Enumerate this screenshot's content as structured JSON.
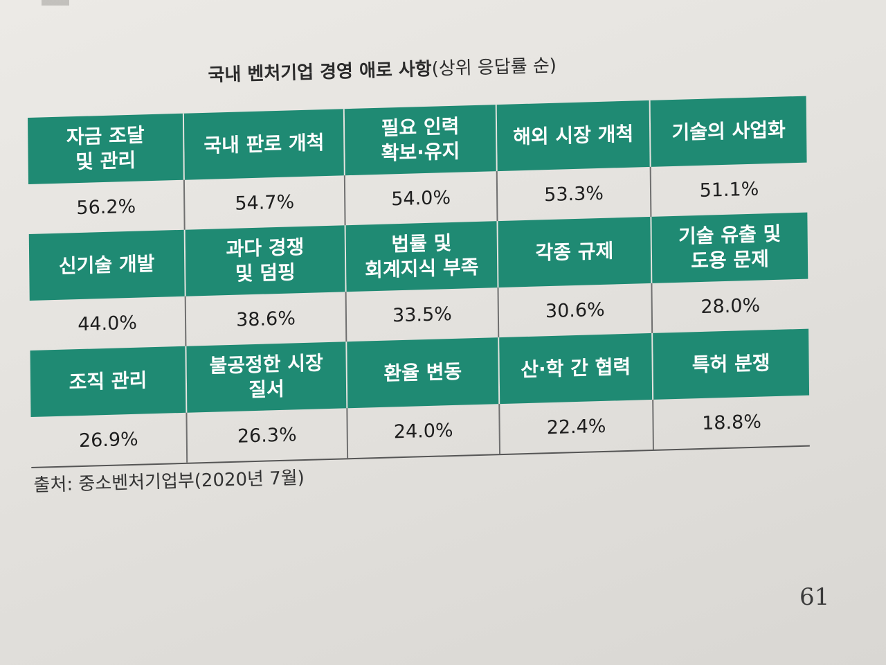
{
  "title": {
    "main": "국내 벤처기업 경영 애로 사항",
    "sub": "(상위 응답률 순)"
  },
  "rows": [
    {
      "headers": [
        "자금 조달\n및 관리",
        "국내 판로 개척",
        "필요 인력\n확보·유지",
        "해외 시장 개척",
        "기술의 사업화"
      ],
      "values": [
        "56.2%",
        "54.7%",
        "54.0%",
        "53.3%",
        "51.1%"
      ]
    },
    {
      "headers": [
        "신기술 개발",
        "과다 경쟁\n및 덤핑",
        "법률 및\n회계지식 부족",
        "각종 규제",
        "기술 유출 및\n도용 문제"
      ],
      "values": [
        "44.0%",
        "38.6%",
        "33.5%",
        "30.6%",
        "28.0%"
      ]
    },
    {
      "headers": [
        "조직 관리",
        "불공정한 시장\n질서",
        "환율 변동",
        "산·학 간 협력",
        "특허 분쟁"
      ],
      "values": [
        "26.9%",
        "26.3%",
        "24.0%",
        "22.4%",
        "18.8%"
      ]
    }
  ],
  "source": "출처: 중소벤처기업부(2020년 7월)",
  "page_number": "61",
  "colors": {
    "header_bg": "#1f8a73",
    "header_text": "#ffffff",
    "paper": "#e4e2de"
  }
}
